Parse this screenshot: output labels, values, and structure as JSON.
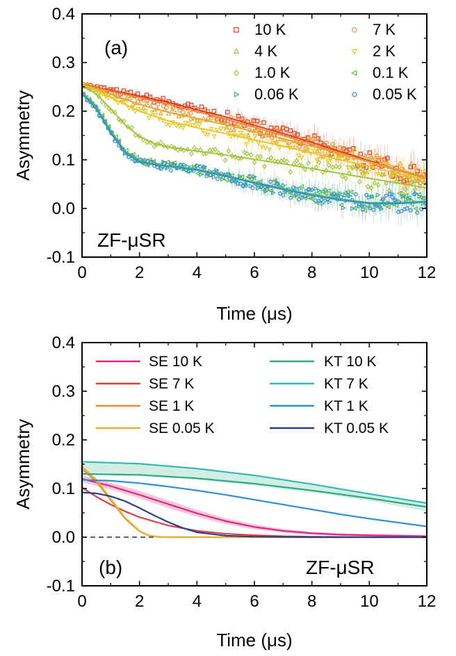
{
  "figure": {
    "panel_a": {
      "label": "(a)",
      "annotation": "ZF-μSR",
      "xlabel": "Time (μs)",
      "ylabel": "Asymmetry",
      "xticks": [
        "0",
        "2",
        "4",
        "6",
        "8",
        "10",
        "12"
      ],
      "yticks": [
        "-0.1",
        "0.0",
        "0.1",
        "0.2",
        "0.3",
        "0.4"
      ]
    },
    "panel_b": {
      "label": "(b)",
      "annotation": "ZF-μSR",
      "xlabel": "Time (μs)",
      "ylabel": "Asymmetry",
      "xticks": [
        "0",
        "2",
        "4",
        "6",
        "8",
        "10",
        "12"
      ],
      "yticks": [
        "-0.1",
        "0.0",
        "0.1",
        "0.2",
        "0.3",
        "0.4"
      ]
    }
  },
  "chart_data": [
    {
      "type": "scatter",
      "panel": "(a)",
      "xlabel": "Time (μs)",
      "ylabel": "Asymmetry",
      "xlim": [
        0,
        12
      ],
      "ylim": [
        -0.1,
        0.4
      ],
      "legend_position": "top-right",
      "fit_lines": true,
      "error_bars": true,
      "series": [
        {
          "name": "10 K",
          "marker": "square",
          "color": "#e53a1e",
          "x": [
            0,
            0.5,
            1,
            2,
            3,
            4,
            5,
            6,
            7,
            8,
            9,
            10,
            11,
            12
          ],
          "y": [
            0.255,
            0.249,
            0.243,
            0.231,
            0.218,
            0.203,
            0.188,
            0.171,
            0.154,
            0.136,
            0.117,
            0.098,
            0.08,
            0.065
          ]
        },
        {
          "name": "7 K",
          "marker": "circle",
          "color": "#f08a3a",
          "x": [
            0,
            0.5,
            1,
            2,
            3,
            4,
            5,
            6,
            7,
            8,
            9,
            10,
            11,
            12
          ],
          "y": [
            0.255,
            0.248,
            0.241,
            0.228,
            0.214,
            0.199,
            0.184,
            0.167,
            0.15,
            0.132,
            0.114,
            0.095,
            0.078,
            0.062
          ]
        },
        {
          "name": "4 K",
          "marker": "triangle-up",
          "color": "#e5a733",
          "x": [
            0,
            0.5,
            1,
            2,
            3,
            4,
            5,
            6,
            7,
            8,
            9,
            10,
            11,
            12
          ],
          "y": [
            0.255,
            0.246,
            0.235,
            0.214,
            0.198,
            0.185,
            0.172,
            0.158,
            0.143,
            0.128,
            0.112,
            0.096,
            0.08,
            0.065
          ]
        },
        {
          "name": "2 K",
          "marker": "triangle-down",
          "color": "#e8c728",
          "x": [
            0,
            0.5,
            1,
            2,
            3,
            4,
            5,
            6,
            7,
            8,
            9,
            10,
            11,
            12
          ],
          "y": [
            0.255,
            0.243,
            0.228,
            0.2,
            0.18,
            0.166,
            0.154,
            0.141,
            0.128,
            0.114,
            0.1,
            0.086,
            0.072,
            0.058
          ]
        },
        {
          "name": "1.0 K",
          "marker": "diamond",
          "color": "#a3c43c",
          "x": [
            0,
            0.5,
            1,
            1.5,
            2,
            2.5,
            3,
            4,
            5,
            6,
            7,
            8,
            9,
            10,
            11,
            12
          ],
          "y": [
            0.255,
            0.235,
            0.205,
            0.172,
            0.148,
            0.134,
            0.126,
            0.118,
            0.11,
            0.101,
            0.092,
            0.082,
            0.072,
            0.062,
            0.052,
            0.042
          ]
        },
        {
          "name": "0.1 K",
          "marker": "triangle-left",
          "color": "#5fba47",
          "x": [
            0,
            0.5,
            1,
            1.5,
            2,
            2.5,
            3,
            4,
            5,
            6,
            7,
            8,
            9,
            10,
            11,
            12
          ],
          "y": [
            0.238,
            0.208,
            0.16,
            0.118,
            0.098,
            0.092,
            0.088,
            0.081,
            0.068,
            0.054,
            0.041,
            0.029,
            0.019,
            0.012,
            0.012,
            0.015
          ]
        },
        {
          "name": "0.06 K",
          "marker": "triangle-right",
          "color": "#37a9a0",
          "x": [
            0,
            0.5,
            1,
            1.5,
            2,
            2.5,
            3,
            4,
            5,
            6,
            7,
            8,
            9,
            10,
            11,
            12
          ],
          "y": [
            0.237,
            0.206,
            0.157,
            0.116,
            0.097,
            0.091,
            0.087,
            0.08,
            0.067,
            0.053,
            0.04,
            0.028,
            0.018,
            0.011,
            0.011,
            0.014
          ]
        },
        {
          "name": "0.05 K",
          "marker": "hexagon",
          "color": "#3a91d1",
          "x": [
            0,
            0.5,
            1,
            1.5,
            2,
            2.5,
            3,
            4,
            5,
            6,
            7,
            8,
            9,
            10,
            11,
            12
          ],
          "y": [
            0.236,
            0.205,
            0.155,
            0.115,
            0.096,
            0.09,
            0.086,
            0.079,
            0.066,
            0.052,
            0.039,
            0.027,
            0.017,
            0.01,
            0.01,
            0.013
          ]
        }
      ]
    },
    {
      "type": "line",
      "panel": "(b)",
      "xlabel": "Time (μs)",
      "ylabel": "Asymmetry",
      "xlim": [
        0,
        12
      ],
      "ylim": [
        -0.1,
        0.4
      ],
      "legend_position": "top",
      "reference_line": {
        "y": 0.0,
        "style": "dashed"
      },
      "bands": [
        {
          "series": "KT 10 K",
          "color": "#c8ebde",
          "x": [
            0,
            2,
            4,
            6,
            8,
            10,
            12
          ],
          "lower": [
            0.13,
            0.127,
            0.118,
            0.106,
            0.092,
            0.075,
            0.053
          ],
          "upper": [
            0.156,
            0.152,
            0.142,
            0.128,
            0.11,
            0.09,
            0.071
          ]
        },
        {
          "series": "SE 10 K",
          "color": "#f2bcd6",
          "x": [
            0,
            1,
            2,
            3,
            4,
            5,
            6,
            7,
            8,
            9,
            10,
            11,
            12
          ],
          "lower": [
            0.113,
            0.098,
            0.08,
            0.06,
            0.042,
            0.027,
            0.016,
            0.009,
            0.005,
            0.003,
            0.002,
            0.001,
            0.001
          ],
          "upper": [
            0.127,
            0.112,
            0.095,
            0.076,
            0.056,
            0.039,
            0.026,
            0.017,
            0.011,
            0.008,
            0.006,
            0.005,
            0.004
          ]
        }
      ],
      "series": [
        {
          "name": "SE 10 K",
          "color": "#e0267f",
          "x": [
            0,
            1,
            2,
            3,
            4,
            5,
            6,
            7,
            8,
            9,
            10,
            11,
            12
          ],
          "y": [
            0.12,
            0.105,
            0.087,
            0.068,
            0.049,
            0.033,
            0.021,
            0.013,
            0.008,
            0.005,
            0.004,
            0.003,
            0.002
          ]
        },
        {
          "name": "SE 7 K",
          "color": "#e0403a",
          "x": [
            0,
            0.5,
            1,
            1.5,
            2,
            3,
            4,
            5,
            6,
            7,
            8,
            10,
            12
          ],
          "y": [
            0.102,
            0.083,
            0.067,
            0.053,
            0.041,
            0.024,
            0.013,
            0.007,
            0.004,
            0.002,
            0.001,
            0.0,
            0.0
          ]
        },
        {
          "name": "SE 1 K",
          "color": "#ee8a3c",
          "x": [
            0,
            0.5,
            1,
            1.5,
            2,
            2.3,
            2.6,
            3,
            4,
            6,
            8,
            10,
            12
          ],
          "y": [
            0.14,
            0.114,
            0.076,
            0.038,
            0.012,
            0.004,
            0.001,
            0.0,
            0.0,
            0.0,
            0.0,
            0.0,
            0.0
          ]
        },
        {
          "name": "SE 0.05 K",
          "color": "#e5b236",
          "x": [
            0,
            0.5,
            1,
            1.5,
            2,
            2.3,
            2.6,
            3,
            4,
            6,
            8,
            10,
            12
          ],
          "y": [
            0.145,
            0.118,
            0.079,
            0.04,
            0.013,
            0.004,
            0.001,
            0.0,
            0.0,
            0.0,
            0.0,
            0.0,
            0.0
          ]
        },
        {
          "name": "KT 10 K",
          "color": "#2faa7e",
          "x": [
            0,
            2,
            4,
            6,
            8,
            10,
            12
          ],
          "y": [
            0.13,
            0.128,
            0.121,
            0.11,
            0.096,
            0.08,
            0.062
          ]
        },
        {
          "name": "KT 7 K",
          "color": "#33b9b9",
          "x": [
            0,
            2,
            4,
            6,
            8,
            10,
            12
          ],
          "y": [
            0.155,
            0.151,
            0.141,
            0.127,
            0.109,
            0.089,
            0.07
          ]
        },
        {
          "name": "KT 1 K",
          "color": "#2e8fd6",
          "x": [
            0,
            1,
            2,
            3,
            4,
            5,
            6,
            7,
            8,
            9,
            10,
            11,
            12
          ],
          "y": [
            0.118,
            0.116,
            0.111,
            0.104,
            0.096,
            0.087,
            0.077,
            0.067,
            0.057,
            0.047,
            0.038,
            0.03,
            0.022
          ]
        },
        {
          "name": "KT 0.05 K",
          "color": "#24408e",
          "x": [
            0,
            0.5,
            1,
            1.5,
            2,
            2.5,
            3,
            3.5,
            4,
            5,
            6,
            8,
            10,
            12
          ],
          "y": [
            0.092,
            0.09,
            0.084,
            0.074,
            0.06,
            0.045,
            0.031,
            0.019,
            0.01,
            0.003,
            0.001,
            0.0,
            0.0,
            0.0
          ]
        }
      ]
    }
  ]
}
